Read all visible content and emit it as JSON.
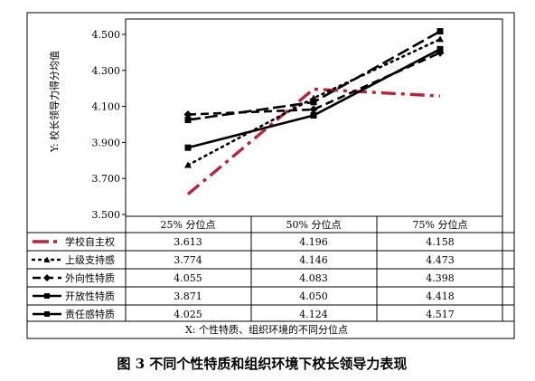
{
  "chart_data": {
    "type": "line",
    "ylabel": "Y: 校长领导力得分均值",
    "xlabel": "X: 个性特质、组织环境的不同分位点",
    "categories": [
      "25% 分位点",
      "50% 分位点",
      "75% 分位点"
    ],
    "ylim": [
      3.5,
      4.6
    ],
    "yticks": [
      "3.500",
      "3.700",
      "3.900",
      "4.100",
      "4.300",
      "4.500"
    ],
    "yticks_values": [
      3.5,
      3.7,
      3.9,
      4.1,
      4.3,
      4.5
    ],
    "grid": false,
    "legend": "data table below plot",
    "series": [
      {
        "name": "学校自主权",
        "values": [
          3.613,
          4.196,
          4.158
        ],
        "labels": [
          "3.613",
          "4.196",
          "4.158"
        ],
        "color": "#b5263a",
        "style": "dash-dot",
        "marker": "none"
      },
      {
        "name": "上级支持感",
        "values": [
          3.774,
          4.146,
          4.473
        ],
        "labels": [
          "3.774",
          "4.146",
          "4.473"
        ],
        "color": "#000000",
        "style": "dotted",
        "marker": "triangle"
      },
      {
        "name": "外向性特质",
        "values": [
          4.055,
          4.083,
          4.398
        ],
        "labels": [
          "4.055",
          "4.083",
          "4.398"
        ],
        "color": "#000000",
        "style": "dashed",
        "marker": "diamond"
      },
      {
        "name": "开放性特质",
        "values": [
          3.871,
          4.05,
          4.418
        ],
        "labels": [
          "3.871",
          "4.050",
          "4.418"
        ],
        "color": "#000000",
        "style": "solid",
        "marker": "square"
      },
      {
        "name": "责任感特质",
        "values": [
          4.025,
          4.124,
          4.517
        ],
        "labels": [
          "4.025",
          "4.124",
          "4.517"
        ],
        "color": "#000000",
        "style": "long-dash",
        "marker": "square"
      }
    ]
  },
  "caption": "图 3  不同个性特质和组织环境下校长领导力表现"
}
